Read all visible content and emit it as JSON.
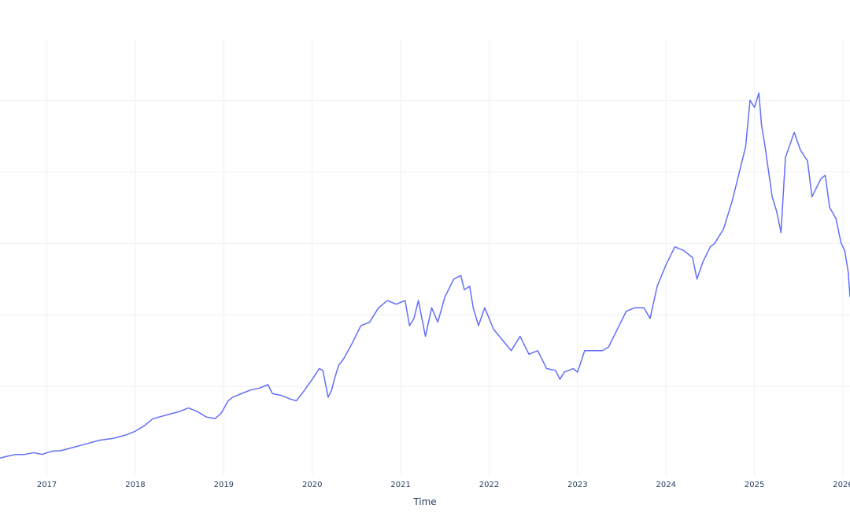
{
  "chart_data": {
    "type": "line",
    "title": "",
    "xlabel": "Time",
    "ylabel": "",
    "grid": true,
    "legend": "none",
    "colors": {
      "series": "#636efa",
      "grid": "#eef0f4",
      "text": "#2a3f5f"
    },
    "xlim": [
      2016.47,
      2026.08
    ],
    "ylim": [
      -0.05,
      1.17
    ],
    "x_ticks": [
      {
        "value": 2017,
        "label": "2017"
      },
      {
        "value": 2018,
        "label": "2018"
      },
      {
        "value": 2019,
        "label": "2019"
      },
      {
        "value": 2020,
        "label": "2020"
      },
      {
        "value": 2021,
        "label": "2021"
      },
      {
        "value": 2022,
        "label": "2022"
      },
      {
        "value": 2023,
        "label": "2023"
      },
      {
        "value": 2024,
        "label": "2024"
      },
      {
        "value": 2025,
        "label": "2025"
      },
      {
        "value": 2026,
        "label": "2026"
      }
    ],
    "y_gridlines": [
      0.2,
      0.4,
      0.6,
      0.8,
      1.0
    ],
    "series": [
      {
        "name": "",
        "x": [
          2016.47,
          2016.55,
          2016.65,
          2016.75,
          2016.85,
          2016.95,
          2017.0,
          2017.08,
          2017.15,
          2017.3,
          2017.45,
          2017.6,
          2017.75,
          2017.9,
          2018.0,
          2018.1,
          2018.2,
          2018.35,
          2018.5,
          2018.6,
          2018.7,
          2018.8,
          2018.9,
          2018.97,
          2019.05,
          2019.1,
          2019.2,
          2019.3,
          2019.4,
          2019.5,
          2019.55,
          2019.65,
          2019.75,
          2019.82,
          2019.9,
          2020.0,
          2020.08,
          2020.12,
          2020.18,
          2020.22,
          2020.25,
          2020.3,
          2020.35,
          2020.45,
          2020.55,
          2020.65,
          2020.75,
          2020.85,
          2020.95,
          2021.05,
          2021.1,
          2021.15,
          2021.2,
          2021.28,
          2021.35,
          2021.42,
          2021.5,
          2021.6,
          2021.68,
          2021.72,
          2021.78,
          2021.82,
          2021.88,
          2021.95,
          2022.0,
          2022.05,
          2022.15,
          2022.25,
          2022.35,
          2022.45,
          2022.55,
          2022.65,
          2022.75,
          2022.8,
          2022.85,
          2022.95,
          2023.0,
          2023.08,
          2023.2,
          2023.28,
          2023.35,
          2023.45,
          2023.55,
          2023.65,
          2023.75,
          2023.82,
          2023.9,
          2024.0,
          2024.1,
          2024.2,
          2024.3,
          2024.35,
          2024.42,
          2024.5,
          2024.55,
          2024.65,
          2024.75,
          2024.82,
          2024.9,
          2024.95,
          2025.0,
          2025.05,
          2025.08,
          2025.12,
          2025.2,
          2025.25,
          2025.3,
          2025.35,
          2025.45,
          2025.52,
          2025.6,
          2025.65,
          2025.75,
          2025.8,
          2025.85,
          2025.92,
          2025.98,
          2026.02,
          2026.06,
          2026.08
        ],
        "y": [
          0.0,
          0.005,
          0.01,
          0.01,
          0.015,
          0.01,
          0.015,
          0.02,
          0.02,
          0.03,
          0.04,
          0.05,
          0.055,
          0.065,
          0.075,
          0.09,
          0.11,
          0.12,
          0.13,
          0.14,
          0.13,
          0.115,
          0.11,
          0.125,
          0.16,
          0.17,
          0.18,
          0.19,
          0.195,
          0.205,
          0.18,
          0.175,
          0.165,
          0.16,
          0.185,
          0.22,
          0.25,
          0.245,
          0.17,
          0.19,
          0.22,
          0.26,
          0.275,
          0.32,
          0.37,
          0.38,
          0.42,
          0.44,
          0.43,
          0.44,
          0.37,
          0.39,
          0.44,
          0.34,
          0.42,
          0.38,
          0.45,
          0.5,
          0.51,
          0.47,
          0.48,
          0.42,
          0.37,
          0.42,
          0.39,
          0.36,
          0.33,
          0.3,
          0.34,
          0.29,
          0.3,
          0.25,
          0.245,
          0.22,
          0.24,
          0.25,
          0.24,
          0.3,
          0.3,
          0.3,
          0.31,
          0.36,
          0.41,
          0.42,
          0.42,
          0.39,
          0.48,
          0.54,
          0.59,
          0.58,
          0.56,
          0.5,
          0.55,
          0.59,
          0.6,
          0.64,
          0.72,
          0.79,
          0.87,
          1.0,
          0.98,
          1.02,
          0.93,
          0.87,
          0.73,
          0.69,
          0.63,
          0.84,
          0.91,
          0.86,
          0.83,
          0.73,
          0.78,
          0.79,
          0.7,
          0.67,
          0.6,
          0.58,
          0.52,
          0.45
        ]
      }
    ]
  }
}
